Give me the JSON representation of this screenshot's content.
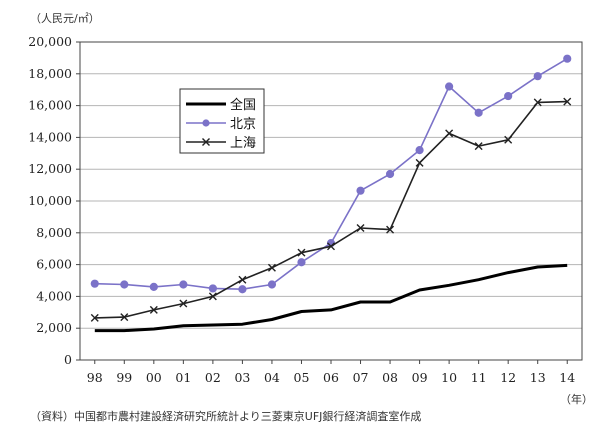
{
  "chart_data": {
    "type": "line",
    "unit_label": "（人民元/㎡）",
    "x_unit_label": "（年）",
    "source": "（資料）中国都市農村建設経済研究所統計より三菱東京UFJ銀行経済調査室作成",
    "categories": [
      "98",
      "99",
      "00",
      "01",
      "02",
      "03",
      "04",
      "05",
      "06",
      "07",
      "08",
      "09",
      "10",
      "11",
      "12",
      "13",
      "14"
    ],
    "ylim": [
      0,
      20000
    ],
    "yticks": [
      0,
      2000,
      4000,
      6000,
      8000,
      10000,
      12000,
      14000,
      16000,
      18000,
      20000
    ],
    "ytick_labels": [
      "0",
      "2,000",
      "4,000",
      "6,000",
      "8,000",
      "10,000",
      "12,000",
      "14,000",
      "16,000",
      "18,000",
      "20,000"
    ],
    "grid": true,
    "legend_position": "upper-left",
    "series": [
      {
        "name": "全国",
        "color": "#000000",
        "marker": "none",
        "values": [
          1850,
          1850,
          1950,
          2150,
          2200,
          2250,
          2550,
          3050,
          3150,
          3650,
          3650,
          4400,
          4700,
          5050,
          5500,
          5850,
          5950
        ]
      },
      {
        "name": "北京",
        "color": "#7b72c8",
        "marker": "circle",
        "values": [
          4800,
          4750,
          4600,
          4750,
          4500,
          4450,
          4750,
          6150,
          7350,
          10650,
          11700,
          13200,
          17200,
          15550,
          16600,
          17850,
          18950
        ]
      },
      {
        "name": "上海",
        "color": "#222222",
        "marker": "x",
        "values": [
          2650,
          2700,
          3150,
          3550,
          4000,
          5050,
          5800,
          6750,
          7150,
          8300,
          8200,
          12400,
          14250,
          13450,
          13850,
          16200,
          16250
        ]
      }
    ]
  }
}
